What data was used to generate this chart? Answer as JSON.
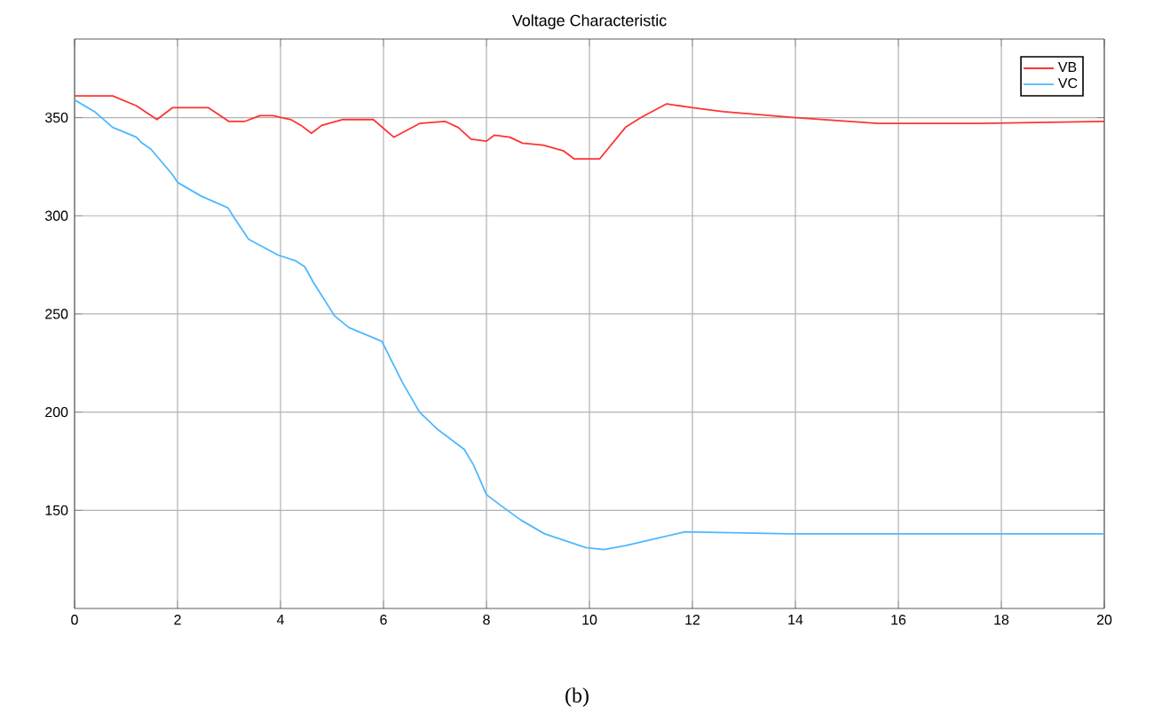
{
  "chart_data": {
    "type": "line",
    "title": "Voltage Characteristic",
    "annotations": [
      "(b)"
    ],
    "xlim": [
      0,
      20
    ],
    "xticks": [
      0,
      2,
      4,
      6,
      8,
      10,
      12,
      14,
      16,
      18,
      20
    ],
    "ylim": [
      100,
      390
    ],
    "yticks": [
      150,
      200,
      250,
      300,
      350
    ],
    "grid": true,
    "legend": "top right",
    "line_style": "solid",
    "marker": "none",
    "series": [
      {
        "name": "VB",
        "color": "#ff3333",
        "x": [
          0,
          0.74,
          1.2,
          1.6,
          1.9,
          2.6,
          3.0,
          3.3,
          3.6,
          3.85,
          4.2,
          4.4,
          4.6,
          4.8,
          5.2,
          5.8,
          6.2,
          6.7,
          7.2,
          7.45,
          7.7,
          8.0,
          8.15,
          8.45,
          8.7,
          9.1,
          9.5,
          9.7,
          10.2,
          10.7,
          11.0,
          11.5,
          12.0,
          12.6,
          14.0,
          15.6,
          16.0,
          17.6,
          20
        ],
        "values": [
          361,
          361,
          356,
          349,
          355,
          355,
          348,
          348,
          351,
          351,
          349,
          346,
          342,
          346,
          349,
          349,
          340,
          347,
          348,
          345,
          339,
          338,
          341,
          340,
          337,
          336,
          333,
          329,
          329,
          345,
          350,
          357,
          355,
          353,
          350,
          347,
          347,
          347,
          348
        ]
      },
      {
        "name": "VC",
        "color": "#4db8ff",
        "x": [
          0,
          0.39,
          0.74,
          1.2,
          1.31,
          1.48,
          1.9,
          2.0,
          2.46,
          2.98,
          3.1,
          3.38,
          3.95,
          4.3,
          4.47,
          4.64,
          5.05,
          5.33,
          5.97,
          6.14,
          6.37,
          6.7,
          7.06,
          7.57,
          7.75,
          8.0,
          8.3,
          8.67,
          9.13,
          9.93,
          10.28,
          10.7,
          11.85,
          13.9,
          20
        ],
        "values": [
          359,
          353,
          345,
          340,
          337,
          334,
          321,
          317,
          310,
          304,
          299,
          288,
          280,
          277,
          274,
          266,
          249,
          243,
          236,
          227,
          215,
          200,
          191,
          181,
          173,
          158,
          152,
          145,
          138,
          131,
          130,
          132,
          139,
          138,
          138
        ]
      }
    ]
  }
}
